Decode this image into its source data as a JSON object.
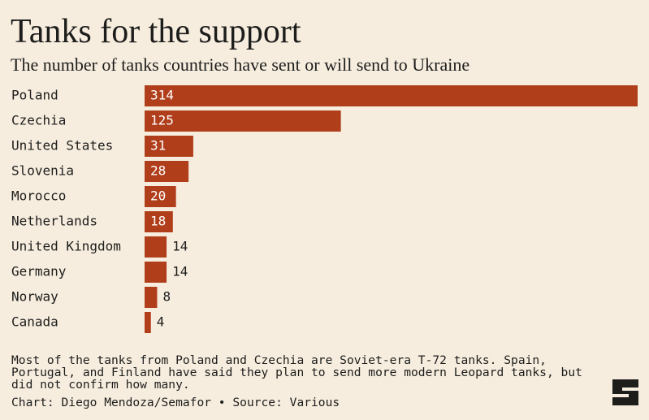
{
  "chart_data": {
    "type": "bar",
    "orientation": "horizontal",
    "title": "Tanks for the support",
    "subtitle": "The number of tanks countries have sent or will send to Ukraine",
    "categories": [
      "Poland",
      "Czechia",
      "United States",
      "Slovenia",
      "Morocco",
      "Netherlands",
      "United Kingdom",
      "Germany",
      "Norway",
      "Canada"
    ],
    "values": [
      314,
      125,
      31,
      28,
      20,
      18,
      14,
      14,
      8,
      4
    ],
    "color": "#b03e1b",
    "note": "Most of the tanks from Poland and Czechia are Soviet-era T-72 tanks. Spain, Portugal, and Finland have said they plan to send more modern Leopard tanks, but did not confirm how many.",
    "credit": "Chart: Diego Mendoza/Semafor • Source: Various"
  }
}
